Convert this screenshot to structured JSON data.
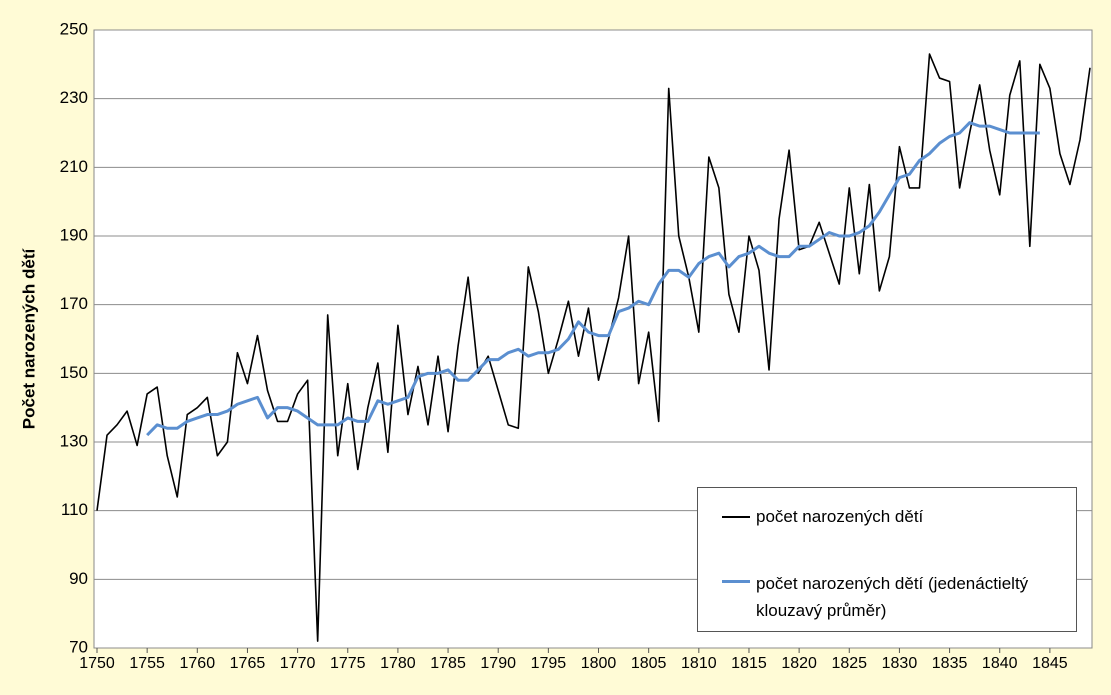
{
  "chart_data": {
    "type": "line",
    "y_label": "Počet narozených dětí",
    "x": [
      1750,
      1751,
      1752,
      1753,
      1754,
      1755,
      1756,
      1757,
      1758,
      1759,
      1760,
      1761,
      1762,
      1763,
      1764,
      1765,
      1766,
      1767,
      1768,
      1769,
      1770,
      1771,
      1772,
      1773,
      1774,
      1775,
      1776,
      1777,
      1778,
      1779,
      1780,
      1781,
      1782,
      1783,
      1784,
      1785,
      1786,
      1787,
      1788,
      1789,
      1790,
      1791,
      1792,
      1793,
      1794,
      1795,
      1796,
      1797,
      1798,
      1799,
      1800,
      1801,
      1802,
      1803,
      1804,
      1805,
      1806,
      1807,
      1808,
      1809,
      1810,
      1811,
      1812,
      1813,
      1814,
      1815,
      1816,
      1817,
      1818,
      1819,
      1820,
      1821,
      1822,
      1823,
      1824,
      1825,
      1826,
      1827,
      1828,
      1829,
      1830,
      1831,
      1832,
      1833,
      1834,
      1835,
      1836,
      1837,
      1838,
      1839,
      1840,
      1841,
      1842,
      1843,
      1844,
      1845,
      1846,
      1847,
      1848,
      1849
    ],
    "series": [
      {
        "name": "počet narozených dětí",
        "color": "#000000",
        "values": [
          110,
          132,
          135,
          139,
          129,
          144,
          146,
          126,
          114,
          138,
          140,
          143,
          126,
          130,
          156,
          147,
          161,
          145,
          136,
          136,
          144,
          148,
          72,
          167,
          126,
          147,
          122,
          140,
          153,
          127,
          164,
          138,
          152,
          135,
          155,
          133,
          158,
          178,
          150,
          155,
          145,
          135,
          134,
          181,
          168,
          150,
          160,
          171,
          155,
          169,
          148,
          160,
          172,
          190,
          147,
          162,
          136,
          233,
          190,
          178,
          162,
          213,
          204,
          173,
          162,
          190,
          180,
          151,
          195,
          215,
          186,
          187,
          194,
          185,
          176,
          204,
          179,
          205,
          174,
          184,
          216,
          204,
          204,
          243,
          236,
          235,
          204,
          220,
          234,
          215,
          202,
          231,
          241,
          187,
          240,
          233,
          214,
          205,
          218,
          239
        ]
      },
      {
        "name": "počet narozených dětí (jedenáctieltý klouzavý průměr)",
        "color": "#5b8fd0",
        "values": [
          null,
          null,
          null,
          null,
          null,
          132,
          135,
          134,
          134,
          136,
          137,
          138,
          138,
          139,
          141,
          142,
          143,
          137,
          140,
          140,
          139,
          137,
          135,
          135,
          135,
          137,
          136,
          136,
          142,
          141,
          142,
          143,
          149,
          150,
          150,
          151,
          148,
          148,
          151,
          154,
          154,
          156,
          157,
          155,
          156,
          156,
          157,
          160,
          165,
          162,
          161,
          161,
          168,
          169,
          171,
          170,
          176,
          180,
          180,
          178,
          182,
          184,
          185,
          181,
          184,
          185,
          187,
          185,
          184,
          184,
          187,
          187,
          189,
          191,
          190,
          190,
          191,
          193,
          197,
          202,
          207,
          208,
          212,
          214,
          217,
          219,
          220,
          223,
          222,
          222,
          221,
          220,
          220,
          220,
          220,
          null,
          null,
          null,
          null,
          null
        ]
      }
    ],
    "xlim": [
      1750,
      1849
    ],
    "xticks": [
      1750,
      1755,
      1760,
      1765,
      1770,
      1775,
      1780,
      1785,
      1790,
      1795,
      1800,
      1805,
      1810,
      1815,
      1820,
      1825,
      1830,
      1835,
      1840,
      1845
    ],
    "ylim": [
      70,
      250
    ],
    "yticks": [
      70,
      90,
      110,
      130,
      150,
      170,
      190,
      210,
      230,
      250
    ],
    "grid": true
  }
}
